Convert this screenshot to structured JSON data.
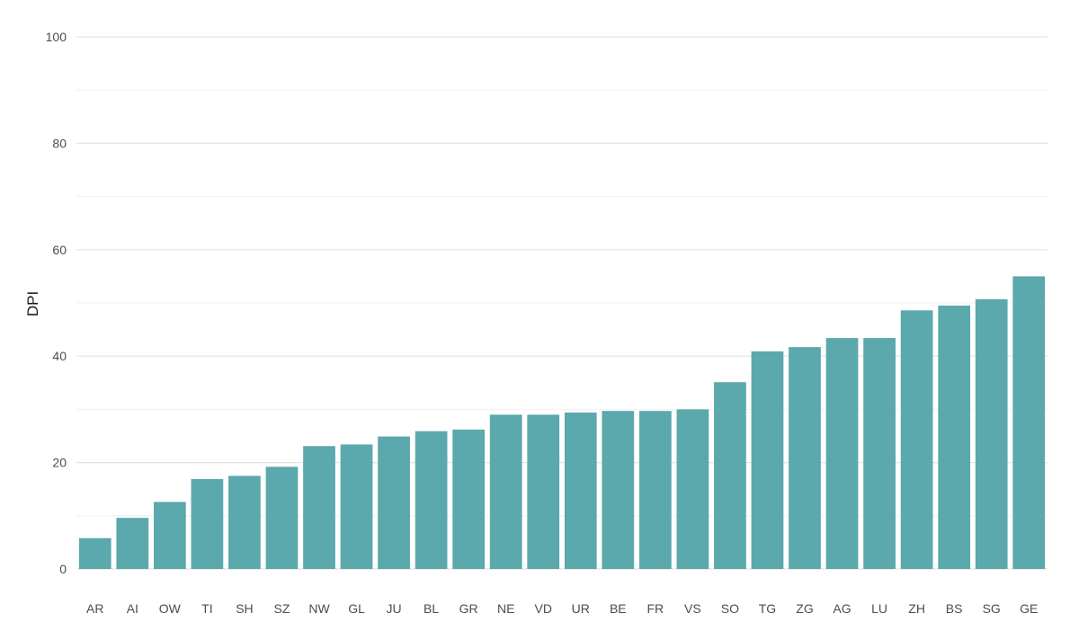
{
  "chart_data": {
    "type": "bar",
    "title": "",
    "xlabel": "",
    "ylabel": "DPI",
    "ylim": [
      0,
      100
    ],
    "yticks": [
      0,
      20,
      40,
      60,
      80,
      100
    ],
    "grid": true,
    "bar_color": "#5ba8ad",
    "categories": [
      "AR",
      "AI",
      "OW",
      "TI",
      "SH",
      "SZ",
      "NW",
      "GL",
      "JU",
      "BL",
      "GR",
      "NE",
      "VD",
      "UR",
      "BE",
      "FR",
      "VS",
      "SO",
      "TG",
      "ZG",
      "AG",
      "LU",
      "ZH",
      "BS",
      "SG",
      "GE"
    ],
    "values": [
      5.8,
      9.6,
      12.6,
      16.9,
      17.5,
      19.2,
      23.1,
      23.4,
      24.9,
      25.9,
      26.2,
      29.0,
      29.0,
      29.4,
      29.7,
      29.7,
      30.0,
      35.1,
      40.9,
      41.7,
      43.4,
      43.4,
      48.6,
      49.5,
      50.7,
      55.0
    ]
  }
}
